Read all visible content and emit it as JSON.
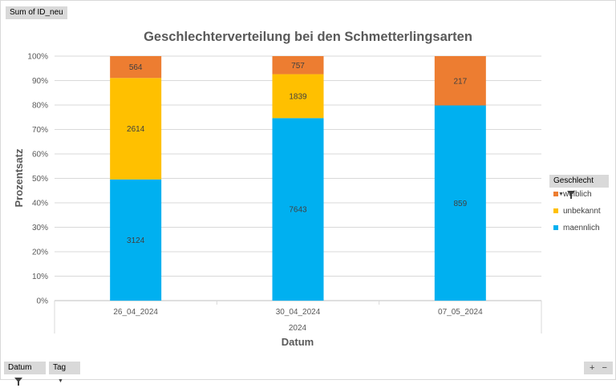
{
  "pivot": {
    "value_field": "Sum of ID_neu",
    "legend_field": "Geschlecht",
    "axis_fields": [
      "Datum",
      "Tag"
    ],
    "zoom_in": "+",
    "zoom_out": "−"
  },
  "colors": {
    "maennlich": "#00B0F0",
    "unbekannt": "#FFC000",
    "weiblich": "#ED7D31"
  },
  "chart_data": {
    "type": "bar",
    "stacked": "percent",
    "title": "Geschlechterverteilung bei den Schmetterlingsarten",
    "xlabel": "Datum",
    "ylabel": "Prozentsatz",
    "group_label": "2024",
    "categories": [
      "26_04_2024",
      "30_04_2024",
      "07_05_2024"
    ],
    "ylim": [
      0,
      100
    ],
    "yticks": [
      "0%",
      "10%",
      "20%",
      "30%",
      "40%",
      "50%",
      "60%",
      "70%",
      "80%",
      "90%",
      "100%"
    ],
    "legend_position": "right",
    "grid": true,
    "series": [
      {
        "name": "maennlich",
        "values": [
          3124,
          7643,
          859
        ]
      },
      {
        "name": "unbekannt",
        "values": [
          2614,
          1839,
          0
        ]
      },
      {
        "name": "weiblich",
        "values": [
          564,
          757,
          217
        ]
      }
    ],
    "legend_order": [
      "weiblich",
      "unbekannt",
      "maennlich"
    ]
  }
}
